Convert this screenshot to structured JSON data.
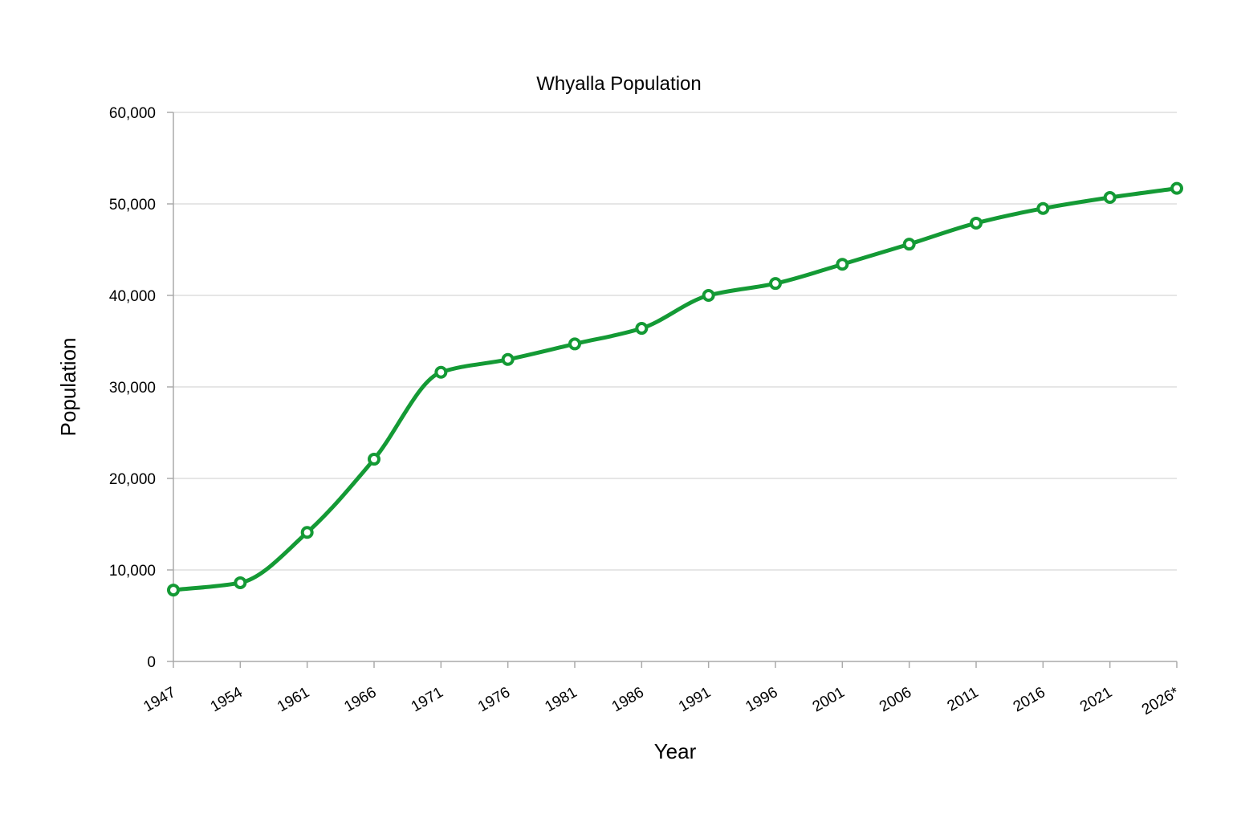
{
  "chart_data": {
    "type": "line",
    "title": "Whyalla Population",
    "xlabel": "Year",
    "ylabel": "Population",
    "categories": [
      "1947",
      "1954",
      "1961",
      "1966",
      "1971",
      "1976",
      "1981",
      "1986",
      "1991",
      "1996",
      "2001",
      "2006",
      "2011",
      "2016",
      "2021",
      "2026*"
    ],
    "series": [
      {
        "values": [
          7800,
          8600,
          14100,
          22100,
          31600,
          33000,
          34700,
          36400,
          40000,
          41300,
          43400,
          45600,
          47900,
          49500,
          50700,
          51700
        ],
        "color": "#149a35"
      }
    ],
    "ylim": [
      0,
      60000
    ],
    "yticks": [
      "0",
      "10,000",
      "20,000",
      "30,000",
      "40,000",
      "50,000",
      "60,000"
    ],
    "grid": true,
    "legend": "none",
    "smooth": true,
    "markers": "hollow-circle"
  }
}
